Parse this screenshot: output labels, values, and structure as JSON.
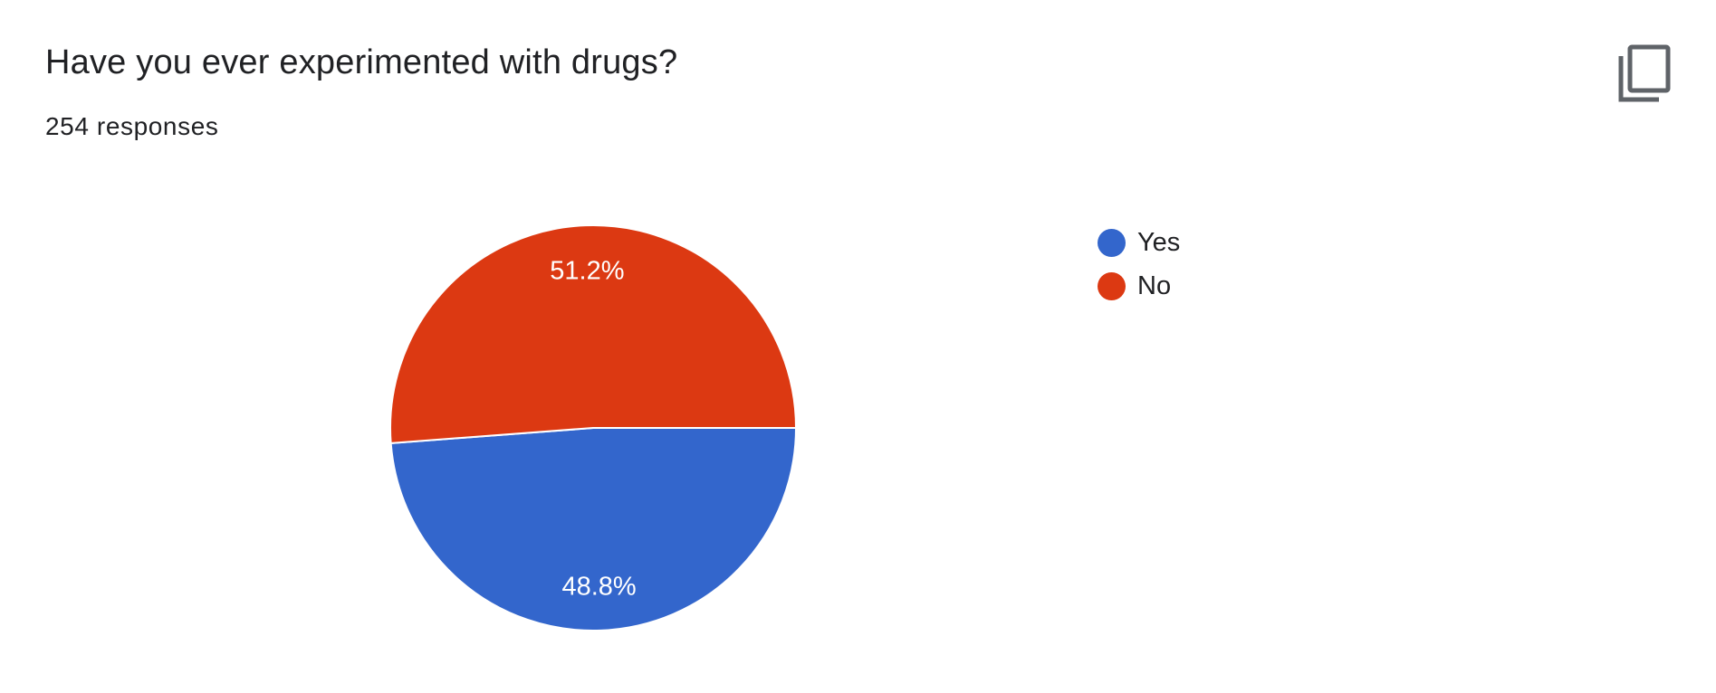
{
  "question": {
    "title": "Have you ever experimented with drugs?",
    "response_count": "254 responses"
  },
  "toolbar": {
    "copy_icon": "copy-icon"
  },
  "colors": {
    "yes": "#3366cc",
    "no": "#dc3912",
    "text": "#202124",
    "icon": "#5f6368"
  },
  "chart_data": {
    "type": "pie",
    "categories": [
      "Yes",
      "No"
    ],
    "values": [
      48.8,
      51.2
    ],
    "labels": [
      "48.8%",
      "51.2%"
    ],
    "colors": [
      "#3366cc",
      "#dc3912"
    ],
    "legend_position": "right"
  },
  "legend": {
    "items": [
      {
        "label": "Yes",
        "color": "#3366cc"
      },
      {
        "label": "No",
        "color": "#dc3912"
      }
    ]
  }
}
